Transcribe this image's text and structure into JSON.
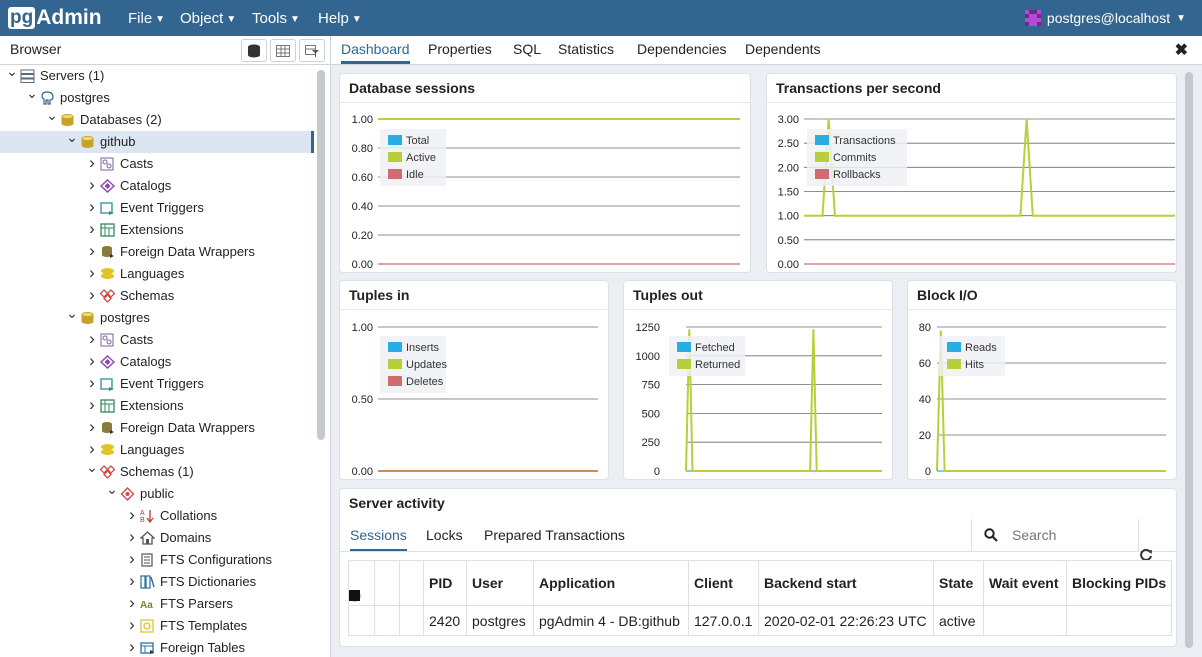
{
  "app": {
    "logo_pg": "pg",
    "logo_admin": "Admin",
    "menus": [
      "File",
      "Object",
      "Tools",
      "Help"
    ],
    "user": "postgres@localhost"
  },
  "browser": {
    "title": "Browser",
    "tree": [
      {
        "label": "Servers (1)",
        "level": 0,
        "toggle": "open",
        "icon": "servers-icon",
        "color": "#5a6b7b"
      },
      {
        "label": "postgres",
        "level": 1,
        "toggle": "open",
        "icon": "elephant-icon",
        "color": "#326690"
      },
      {
        "label": "Databases (2)",
        "level": 2,
        "toggle": "open",
        "icon": "databases-icon",
        "color": "#c8a227"
      },
      {
        "label": "github",
        "level": 3,
        "toggle": "open",
        "icon": "database-icon",
        "color": "#c8a227",
        "selected": true
      },
      {
        "label": "Casts",
        "level": 4,
        "toggle": "closed",
        "icon": "casts-icon",
        "color": "#7b5ea7"
      },
      {
        "label": "Catalogs",
        "level": 4,
        "toggle": "closed",
        "icon": "catalogs-icon",
        "color": "#8e44ad"
      },
      {
        "label": "Event Triggers",
        "level": 4,
        "toggle": "closed",
        "icon": "event-triggers-icon",
        "color": "#2e8b9a"
      },
      {
        "label": "Extensions",
        "level": 4,
        "toggle": "closed",
        "icon": "extensions-icon",
        "color": "#2e8b57"
      },
      {
        "label": "Foreign Data Wrappers",
        "level": 4,
        "toggle": "closed",
        "icon": "fdw-icon",
        "color": "#8a7a3a"
      },
      {
        "label": "Languages",
        "level": 4,
        "toggle": "closed",
        "icon": "languages-icon",
        "color": "#e2c32a"
      },
      {
        "label": "Schemas",
        "level": 4,
        "toggle": "closed",
        "icon": "schemas-icon",
        "color": "#d04a4a"
      },
      {
        "label": "postgres",
        "level": 3,
        "toggle": "open",
        "icon": "database-icon",
        "color": "#c8a227"
      },
      {
        "label": "Casts",
        "level": 4,
        "toggle": "closed",
        "icon": "casts-icon",
        "color": "#7b5ea7"
      },
      {
        "label": "Catalogs",
        "level": 4,
        "toggle": "closed",
        "icon": "catalogs-icon",
        "color": "#8e44ad"
      },
      {
        "label": "Event Triggers",
        "level": 4,
        "toggle": "closed",
        "icon": "event-triggers-icon",
        "color": "#2e8b9a"
      },
      {
        "label": "Extensions",
        "level": 4,
        "toggle": "closed",
        "icon": "extensions-icon",
        "color": "#2e8b57"
      },
      {
        "label": "Foreign Data Wrappers",
        "level": 4,
        "toggle": "closed",
        "icon": "fdw-icon",
        "color": "#8a7a3a"
      },
      {
        "label": "Languages",
        "level": 4,
        "toggle": "closed",
        "icon": "languages-icon",
        "color": "#e2c32a"
      },
      {
        "label": "Schemas (1)",
        "level": 4,
        "toggle": "open",
        "icon": "schemas-icon",
        "color": "#d04a4a"
      },
      {
        "label": "public",
        "level": 5,
        "toggle": "open",
        "icon": "schema-icon",
        "color": "#d04a4a"
      },
      {
        "label": "Collations",
        "level": 6,
        "toggle": "closed",
        "icon": "collations-icon",
        "color": "#c0392b"
      },
      {
        "label": "Domains",
        "level": 6,
        "toggle": "closed",
        "icon": "domains-icon",
        "color": "#555555"
      },
      {
        "label": "FTS Configurations",
        "level": 6,
        "toggle": "closed",
        "icon": "fts-config-icon",
        "color": "#555555"
      },
      {
        "label": "FTS Dictionaries",
        "level": 6,
        "toggle": "closed",
        "icon": "fts-dict-icon",
        "color": "#2e6da4"
      },
      {
        "label": "FTS Parsers",
        "level": 6,
        "toggle": "closed",
        "icon": "fts-parsers-icon",
        "color": "#6b8e23"
      },
      {
        "label": "FTS Templates",
        "level": 6,
        "toggle": "closed",
        "icon": "fts-templates-icon",
        "color": "#e2c32a"
      },
      {
        "label": "Foreign Tables",
        "level": 6,
        "toggle": "closed",
        "icon": "foreign-tables-icon",
        "color": "#2e6da4"
      }
    ]
  },
  "tabs": [
    "Dashboard",
    "Properties",
    "SQL",
    "Statistics",
    "Dependencies",
    "Dependents"
  ],
  "active_tab": "Dashboard",
  "chart_data": [
    {
      "type": "line",
      "title": "Database sessions",
      "yticks": [
        "1.00",
        "0.80",
        "0.60",
        "0.40",
        "0.20",
        "0.00"
      ],
      "ylim": [
        0,
        1
      ],
      "legend": [
        {
          "name": "Total",
          "color": "#29aee3"
        },
        {
          "name": "Active",
          "color": "#b7cf3a"
        },
        {
          "name": "Idle",
          "color": "#cf6b73"
        }
      ],
      "series": [
        {
          "name": "Total",
          "values": [
            1,
            1
          ]
        },
        {
          "name": "Active",
          "values": [
            1,
            1
          ]
        },
        {
          "name": "Idle",
          "values": [
            0,
            0
          ]
        }
      ]
    },
    {
      "type": "line",
      "title": "Transactions per second",
      "yticks": [
        "3.00",
        "2.50",
        "2.00",
        "1.50",
        "1.00",
        "0.50",
        "0.00"
      ],
      "ylim": [
        0,
        3
      ],
      "legend": [
        {
          "name": "Transactions",
          "color": "#29aee3"
        },
        {
          "name": "Commits",
          "color": "#b7cf3a"
        },
        {
          "name": "Rollbacks",
          "color": "#cf6b73"
        }
      ],
      "series": [
        {
          "name": "Transactions",
          "values": [
            1,
            1,
            1,
            1,
            3,
            1,
            1,
            1,
            1,
            1,
            1,
            1,
            1,
            1,
            1,
            1,
            1,
            1,
            1,
            1,
            1,
            1,
            1,
            1,
            1,
            1,
            1,
            1,
            1,
            1,
            1,
            1,
            1,
            1,
            1,
            1,
            3,
            1,
            1,
            1,
            1,
            1,
            1,
            1,
            1,
            1,
            1,
            1,
            1,
            1,
            1,
            1,
            1,
            1,
            1,
            1,
            1,
            1,
            1,
            1,
            1
          ]
        },
        {
          "name": "Commits",
          "values": [
            1,
            1,
            1,
            1,
            3,
            1,
            1,
            1,
            1,
            1,
            1,
            1,
            1,
            1,
            1,
            1,
            1,
            1,
            1,
            1,
            1,
            1,
            1,
            1,
            1,
            1,
            1,
            1,
            1,
            1,
            1,
            1,
            1,
            1,
            1,
            1,
            3,
            1,
            1,
            1,
            1,
            1,
            1,
            1,
            1,
            1,
            1,
            1,
            1,
            1,
            1,
            1,
            1,
            1,
            1,
            1,
            1,
            1,
            1,
            1,
            1
          ]
        },
        {
          "name": "Rollbacks",
          "values": [
            0,
            0
          ]
        }
      ]
    },
    {
      "type": "line",
      "title": "Tuples in",
      "yticks": [
        "1.00",
        "0.50",
        "0.00"
      ],
      "ylim": [
        0,
        1
      ],
      "legend": [
        {
          "name": "Inserts",
          "color": "#29aee3"
        },
        {
          "name": "Updates",
          "color": "#b7cf3a"
        },
        {
          "name": "Deletes",
          "color": "#cf6b73"
        }
      ],
      "series": [
        {
          "name": "Inserts",
          "values": [
            0,
            0
          ]
        },
        {
          "name": "Updates",
          "values": [
            0,
            0
          ]
        },
        {
          "name": "Deletes",
          "values": [
            0,
            0
          ]
        }
      ]
    },
    {
      "type": "line",
      "title": "Tuples out",
      "yticks": [
        "1250",
        "1000",
        "750",
        "500",
        "250",
        "0"
      ],
      "ylim": [
        0,
        1250
      ],
      "legend": [
        {
          "name": "Fetched",
          "color": "#29aee3"
        },
        {
          "name": "Returned",
          "color": "#b7cf3a"
        }
      ],
      "series": [
        {
          "name": "Fetched",
          "values": [
            0,
            0,
            0,
            0,
            0,
            0,
            0,
            0,
            0,
            0,
            0,
            0,
            0,
            0,
            0,
            0,
            0,
            0,
            0,
            0,
            0,
            0,
            0,
            0,
            0,
            0,
            0,
            0,
            0,
            0,
            0,
            0,
            0,
            0,
            0,
            0,
            0,
            0,
            0,
            0,
            0,
            0,
            0,
            0,
            0,
            0,
            0,
            0,
            0,
            0,
            0,
            0,
            0,
            0,
            0,
            0,
            0,
            0,
            0,
            0,
            0
          ]
        },
        {
          "name": "Returned",
          "values": [
            0,
            1230,
            0,
            0,
            0,
            0,
            0,
            0,
            0,
            0,
            0,
            0,
            0,
            0,
            0,
            0,
            0,
            0,
            0,
            0,
            0,
            0,
            0,
            0,
            0,
            0,
            0,
            0,
            0,
            0,
            0,
            0,
            0,
            0,
            0,
            0,
            0,
            0,
            0,
            1230,
            0,
            0,
            0,
            0,
            0,
            0,
            0,
            0,
            0,
            0,
            0,
            0,
            0,
            0,
            0,
            0,
            0,
            0,
            0,
            0,
            0
          ]
        }
      ]
    },
    {
      "type": "line",
      "title": "Block I/O",
      "yticks": [
        "80",
        "60",
        "40",
        "20",
        "0"
      ],
      "ylim": [
        0,
        80
      ],
      "legend": [
        {
          "name": "Reads",
          "color": "#29aee3"
        },
        {
          "name": "Hits",
          "color": "#b7cf3a"
        }
      ],
      "series": [
        {
          "name": "Reads",
          "values": [
            0,
            0,
            0,
            0,
            0,
            0,
            0,
            0,
            0,
            0,
            0,
            0,
            0,
            0,
            0,
            0,
            0,
            0,
            0,
            0,
            0,
            0,
            0,
            0,
            0,
            0,
            0,
            0,
            0,
            0,
            0,
            0,
            0,
            0,
            0,
            0,
            0,
            0,
            0,
            0,
            0,
            0,
            0,
            0,
            0,
            0,
            0,
            0,
            0,
            0,
            0,
            0,
            0,
            0,
            0,
            0,
            0,
            0,
            0,
            0,
            0
          ]
        },
        {
          "name": "Hits",
          "values": [
            0,
            78,
            0,
            0,
            0,
            0,
            0,
            0,
            0,
            0,
            0,
            0,
            0,
            0,
            0,
            0,
            0,
            0,
            0,
            0,
            0,
            0,
            0,
            0,
            0,
            0,
            0,
            0,
            0,
            0,
            0,
            0,
            0,
            0,
            0,
            0,
            0,
            0,
            0,
            0,
            0,
            0,
            0,
            0,
            0,
            0,
            0,
            0,
            0,
            0,
            0,
            0,
            0,
            0,
            0,
            0,
            0,
            0,
            0,
            0,
            0
          ]
        }
      ]
    }
  ],
  "server_activity": {
    "title": "Server activity",
    "subtabs": [
      "Sessions",
      "Locks",
      "Prepared Transactions"
    ],
    "search_placeholder": "Search",
    "columns": [
      "",
      "",
      "",
      "PID",
      "User",
      "Application",
      "Client",
      "Backend start",
      "State",
      "Wait event",
      "Blocking PIDs"
    ],
    "rows": [
      {
        "pid": "2420",
        "user": "postgres",
        "application": "pgAdmin 4 - DB:github",
        "client": "127.0.0.1",
        "backend_start": "2020-02-01 22:26:23 UTC",
        "state": "active",
        "wait_event": "",
        "blocking_pids": ""
      }
    ]
  },
  "colors": {
    "navbar": "#326690",
    "series_blue": "#29aee3",
    "series_green": "#b7cf3a",
    "series_red": "#cf6b73"
  }
}
